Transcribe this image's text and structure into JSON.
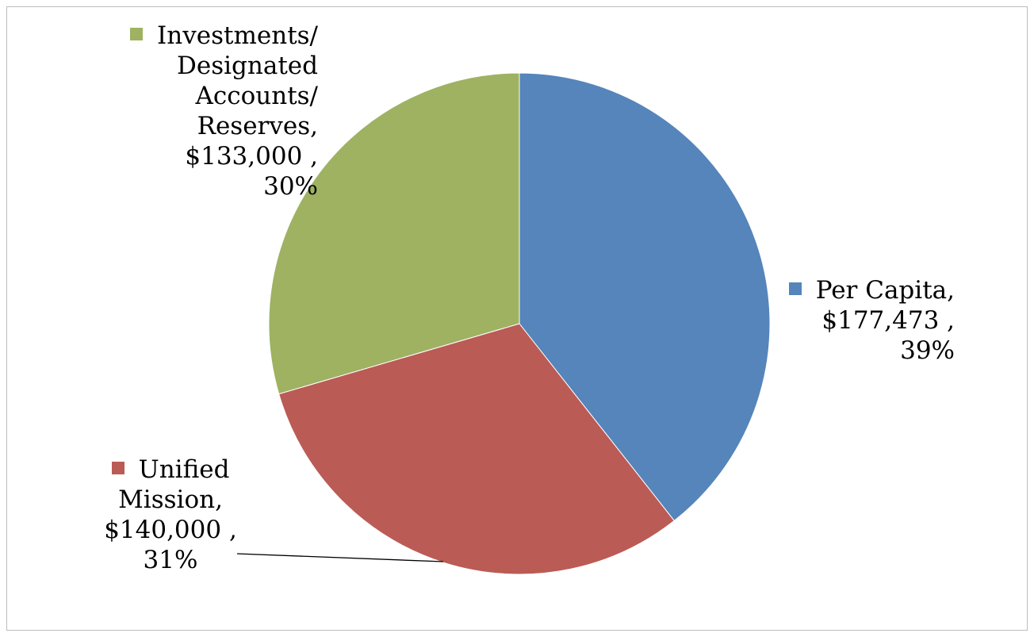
{
  "chart_data": {
    "type": "pie",
    "title": "",
    "slices": [
      {
        "name": "Per Capita",
        "value": 177473,
        "value_label": "$177,473",
        "percent_label": "39%",
        "color": "#5585BA"
      },
      {
        "name": "Unified Mission",
        "value": 140000,
        "value_label": "$140,000",
        "percent_label": "31%",
        "color": "#BB5B55"
      },
      {
        "name": "Investments/ Designated Accounts/ Reserves",
        "value": 133000,
        "value_label": "$133,000",
        "percent_label": "30%",
        "color": "#9EB262"
      }
    ],
    "start_angle": "12 o'clock",
    "direction": "clockwise",
    "legend": "none",
    "labels": {
      "per_capita": {
        "lines": [
          "Per Capita,",
          "$177,473 ,",
          "39%"
        ]
      },
      "unified_mission": {
        "lines": [
          "Unified",
          "Mission,",
          "$140,000 ,",
          "31%"
        ]
      },
      "investments": {
        "lines": [
          "Investments/",
          "Designated",
          "Accounts/",
          "Reserves,",
          "$133,000 ,",
          "30%"
        ]
      }
    }
  }
}
